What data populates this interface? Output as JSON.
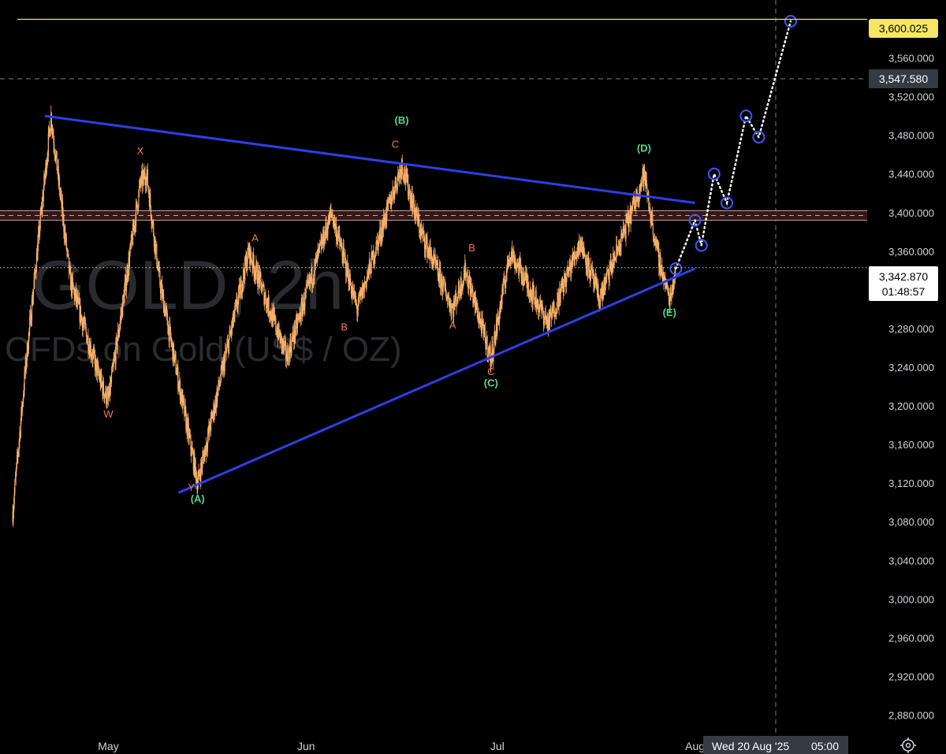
{
  "watermark": {
    "symbol": "GOLD, 2h",
    "description": "CFDs on Gold (US$ / OZ)"
  },
  "axis": {
    "y_ticks": [
      "3,560.000",
      "3,520.000",
      "3,480.000",
      "3,440.000",
      "3,400.000",
      "3,360.000",
      "3,280.000",
      "3,240.000",
      "3,200.000",
      "3,160.000",
      "3,120.000",
      "3,080.000",
      "3,040.000",
      "3,000.000",
      "2,960.000",
      "2,920.000",
      "2,880.000"
    ],
    "y_tick_values": [
      3560,
      3520,
      3480,
      3440,
      3400,
      3360,
      3280,
      3240,
      3200,
      3160,
      3120,
      3080,
      3040,
      3000,
      2960,
      2920,
      2880
    ],
    "x_ticks": [
      "May",
      "Jun",
      "Jul",
      "Aug"
    ],
    "crosshair_time": "Wed 20 Aug '25",
    "crosshair_clock": "05:00"
  },
  "price_badges": {
    "target": "3,600.025",
    "crosshair": "3,547.580",
    "last": "3,342.870",
    "countdown": "01:48:57"
  },
  "colors": {
    "candles": "#f7b069",
    "trendline": "#2d3fe6",
    "target_line": "#f5e663",
    "labels_orange": "#f07b36",
    "labels_green": "#57d68d",
    "zone_border": "#c9a2a2",
    "zone_fill": "#3a1a1a",
    "projection": "#ffffff",
    "circle": "#3b5bff"
  },
  "chart_data": {
    "type": "line",
    "instrument": "GOLD, 2h",
    "ylim": [
      2860,
      3620
    ],
    "xlim": [
      "2025-04-14",
      "2025-08-28"
    ],
    "key_points": [
      {
        "date": "2025-04-16",
        "price": 3090
      },
      {
        "date": "2025-04-18",
        "price": 3240
      },
      {
        "date": "2025-04-22",
        "price": 3500
      },
      {
        "date": "2025-04-25",
        "price": 3330
      },
      {
        "date": "2025-04-30",
        "price": 3220
      },
      {
        "date": "2025-05-01",
        "price": 3205
      },
      {
        "date": "2025-05-06",
        "price": 3430
      },
      {
        "date": "2025-05-07",
        "price": 3440
      },
      {
        "date": "2025-05-09",
        "price": 3330
      },
      {
        "date": "2025-05-15",
        "price": 3120
      },
      {
        "date": "2025-05-18",
        "price": 3210
      },
      {
        "date": "2025-05-23",
        "price": 3360
      },
      {
        "date": "2025-05-29",
        "price": 3250
      },
      {
        "date": "2025-06-05",
        "price": 3400
      },
      {
        "date": "2025-06-09",
        "price": 3300
      },
      {
        "date": "2025-06-16",
        "price": 3450
      },
      {
        "date": "2025-06-19",
        "price": 3380
      },
      {
        "date": "2025-06-24",
        "price": 3300
      },
      {
        "date": "2025-06-26",
        "price": 3340
      },
      {
        "date": "2025-06-30",
        "price": 3248
      },
      {
        "date": "2025-07-03",
        "price": 3360
      },
      {
        "date": "2025-07-09",
        "price": 3285
      },
      {
        "date": "2025-07-14",
        "price": 3370
      },
      {
        "date": "2025-07-17",
        "price": 3310
      },
      {
        "date": "2025-07-22",
        "price": 3400
      },
      {
        "date": "2025-07-24",
        "price": 3440
      },
      {
        "date": "2025-07-26",
        "price": 3360
      },
      {
        "date": "2025-07-28",
        "price": 3310
      },
      {
        "date": "2025-07-29",
        "price": 3343
      }
    ],
    "trendlines": [
      {
        "name": "upper",
        "from": {
          "date": "2025-04-21",
          "price": 3500
        },
        "to": {
          "date": "2025-08-01",
          "price": 3410
        }
      },
      {
        "name": "lower",
        "from": {
          "date": "2025-05-12",
          "price": 3110
        },
        "to": {
          "date": "2025-08-01",
          "price": 3342
        }
      }
    ],
    "resistance_zone": [
      3392,
      3402
    ],
    "target_price": 3600.025,
    "projection": [
      {
        "date": "2025-07-29",
        "price": 3342
      },
      {
        "date": "2025-08-01",
        "price": 3392
      },
      {
        "date": "2025-08-02",
        "price": 3366
      },
      {
        "date": "2025-08-04",
        "price": 3440
      },
      {
        "date": "2025-08-06",
        "price": 3410
      },
      {
        "date": "2025-08-09",
        "price": 3500
      },
      {
        "date": "2025-08-11",
        "price": 3478
      },
      {
        "date": "2025-08-16",
        "price": 3598
      }
    ],
    "wave_labels": [
      {
        "text": "X",
        "date": "2025-05-06",
        "price": 3460,
        "color": "orange"
      },
      {
        "text": "W",
        "date": "2025-05-01",
        "price": 3188,
        "color": "orange"
      },
      {
        "text": "Y",
        "date": "2025-05-14",
        "price": 3112,
        "color": "orange"
      },
      {
        "text": "(A)",
        "date": "2025-05-15",
        "price": 3100,
        "color": "green"
      },
      {
        "text": "A",
        "date": "2025-05-24",
        "price": 3370,
        "color": "orange"
      },
      {
        "text": "B",
        "date": "2025-06-07",
        "price": 3278,
        "color": "orange"
      },
      {
        "text": "C",
        "date": "2025-06-15",
        "price": 3467,
        "color": "orange"
      },
      {
        "text": "(B)",
        "date": "2025-06-16",
        "price": 3492,
        "color": "green"
      },
      {
        "text": "A",
        "date": "2025-06-24",
        "price": 3280,
        "color": "orange"
      },
      {
        "text": "B",
        "date": "2025-06-27",
        "price": 3360,
        "color": "orange"
      },
      {
        "text": "C",
        "date": "2025-06-30",
        "price": 3232,
        "color": "orange"
      },
      {
        "text": "(C)",
        "date": "2025-06-30",
        "price": 3220,
        "color": "green"
      },
      {
        "text": "(D)",
        "date": "2025-07-24",
        "price": 3463,
        "color": "green"
      },
      {
        "text": "(E)",
        "date": "2025-07-28",
        "price": 3293,
        "color": "green"
      }
    ]
  }
}
